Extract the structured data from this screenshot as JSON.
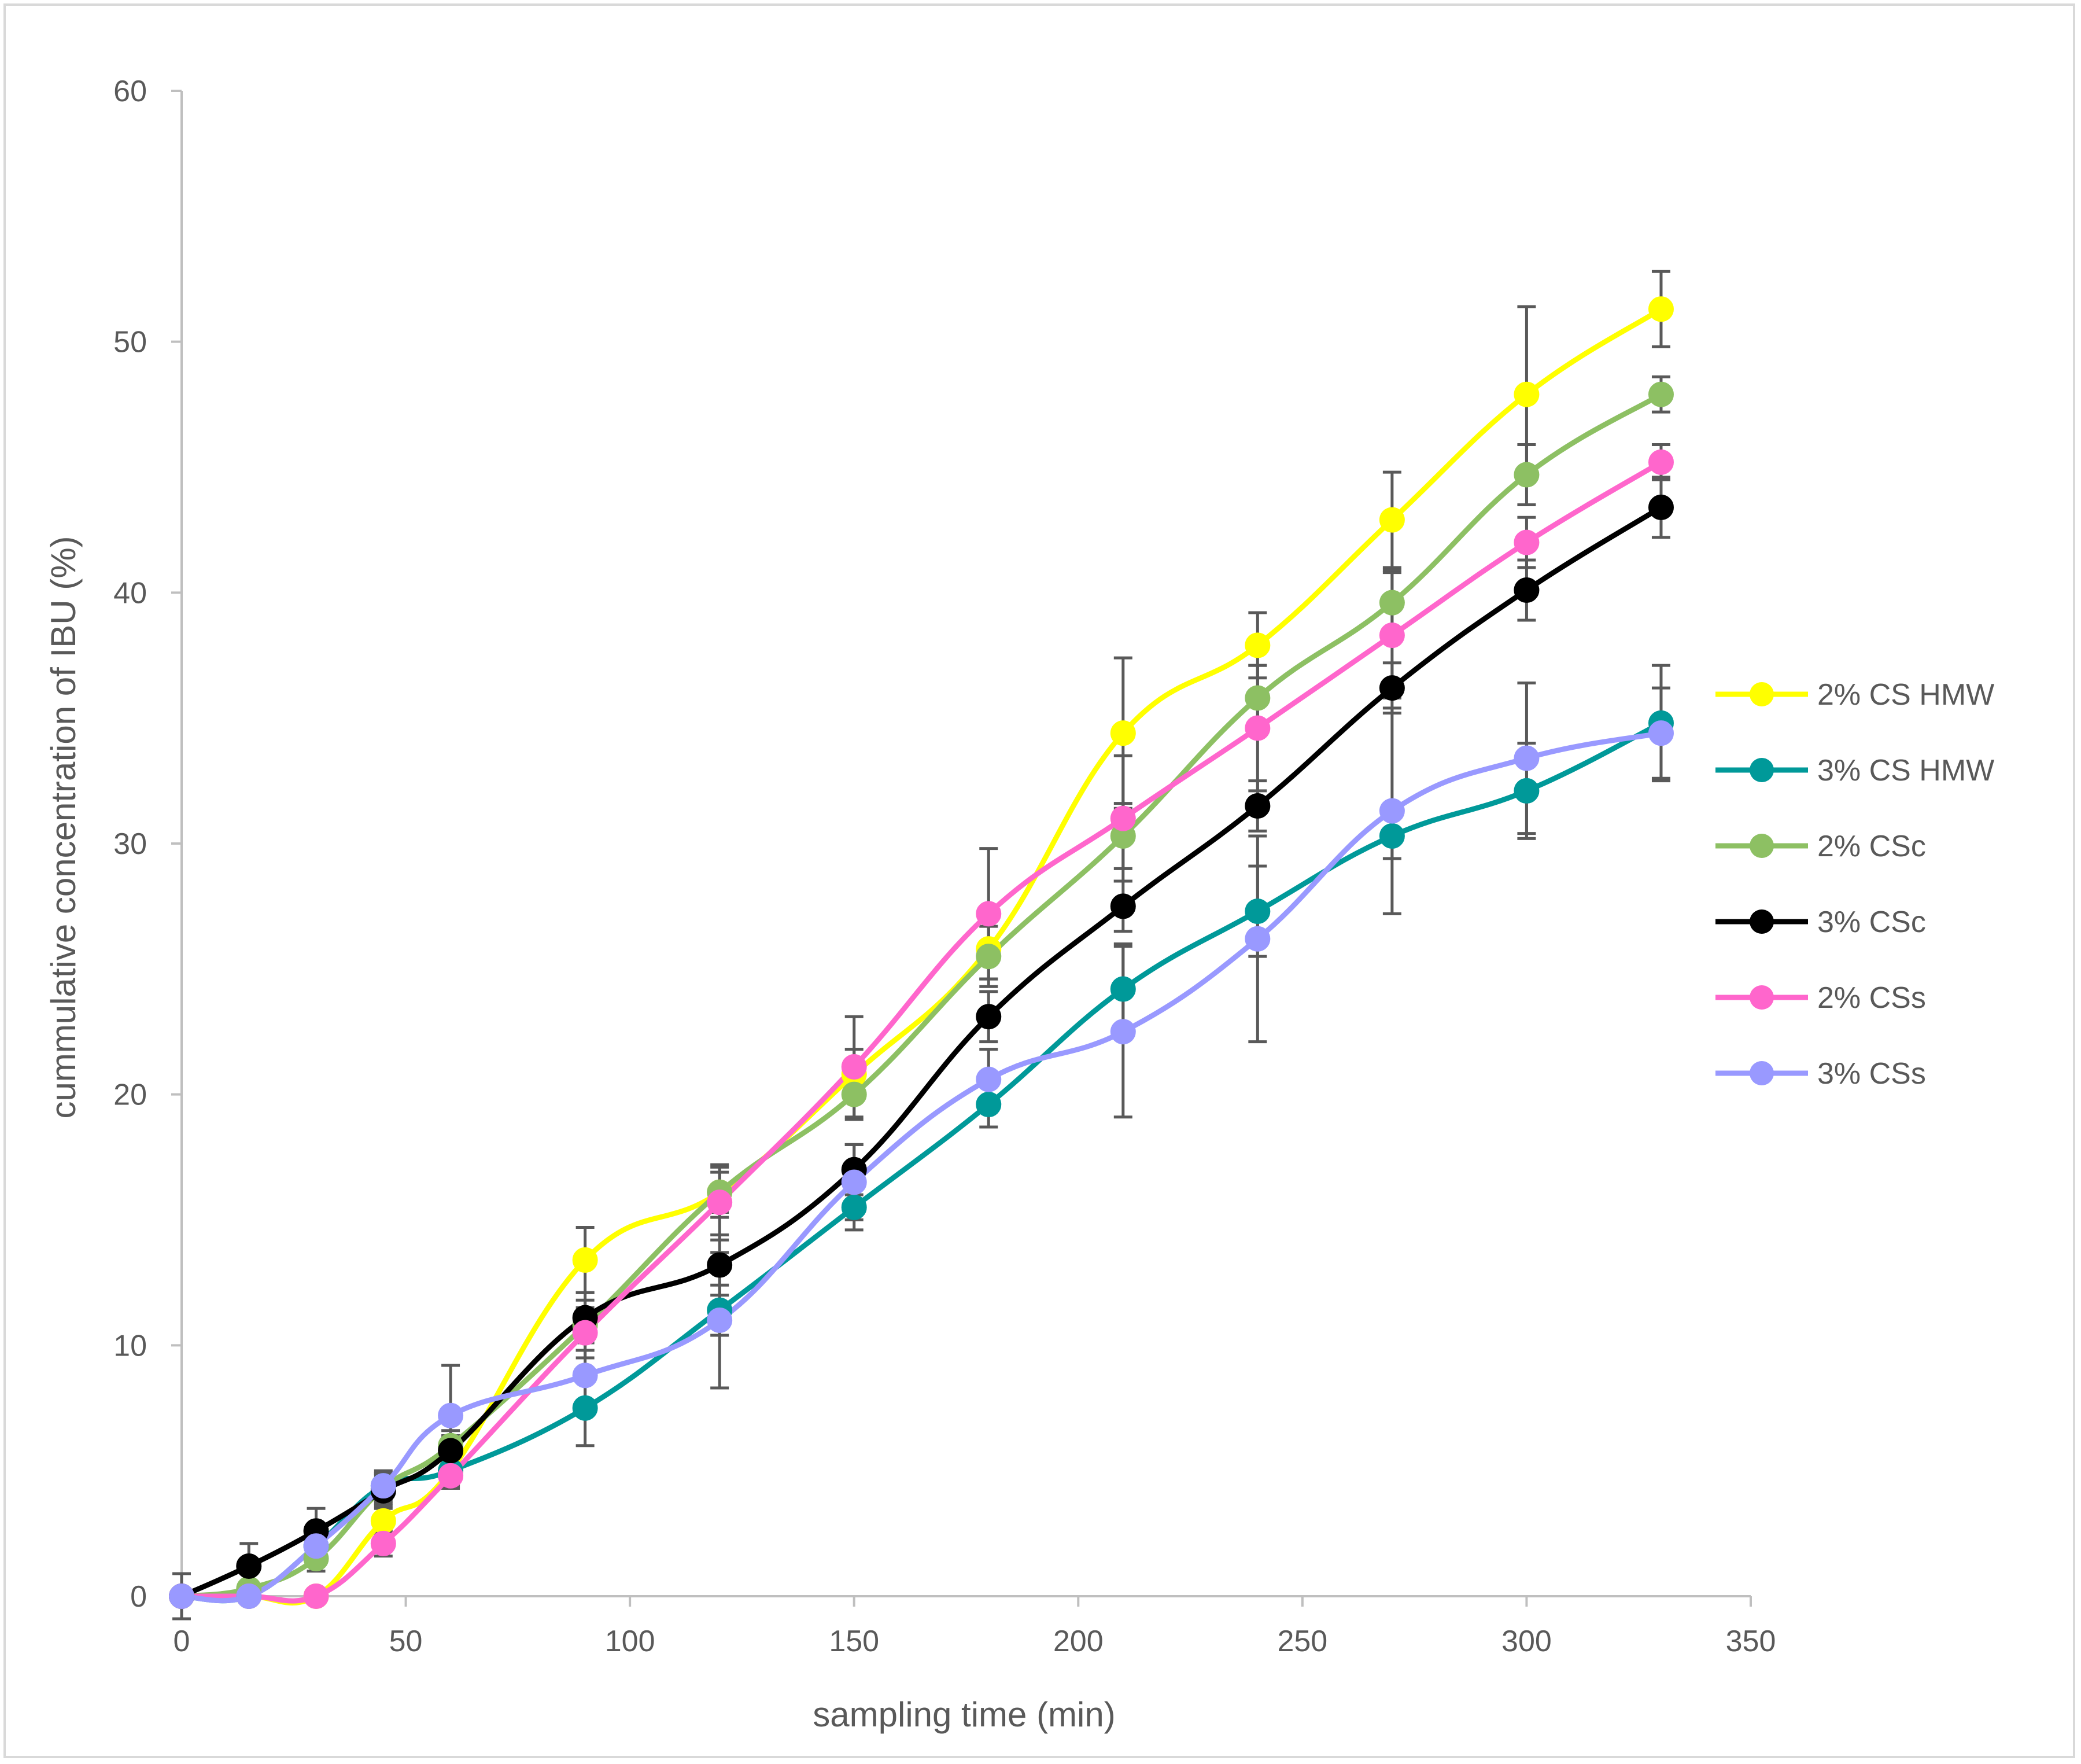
{
  "chart_data": {
    "type": "line",
    "title": "",
    "xlabel": "sampling time (min)",
    "ylabel": "cummulative concentration of  IBU (%)",
    "xlim": [
      0,
      350
    ],
    "ylim": [
      0,
      60
    ],
    "xticks": [
      0,
      50,
      100,
      150,
      200,
      250,
      300,
      350
    ],
    "yticks": [
      0,
      10,
      20,
      30,
      40,
      50,
      60
    ],
    "grid": false,
    "legend": "right",
    "x": [
      0,
      15,
      30,
      45,
      60,
      90,
      120,
      150,
      180,
      210,
      240,
      270,
      300,
      330
    ],
    "series": [
      {
        "name": "2% CS HMW",
        "color": "#ffff00",
        "values": [
          0,
          0,
          0,
          3.0,
          5.0,
          13.4,
          16.1,
          20.8,
          25.8,
          34.4,
          37.9,
          42.9,
          47.9,
          51.3
        ],
        "errors": [
          0,
          0,
          0,
          0.5,
          0.5,
          1.3,
          0.8,
          1.0,
          1.2,
          3.0,
          1.3,
          1.9,
          3.5,
          1.5
        ]
      },
      {
        "name": "3% CS HMW",
        "color": "#009999",
        "values": [
          0,
          0,
          2.0,
          4.4,
          5.0,
          7.5,
          11.4,
          15.5,
          19.6,
          24.2,
          27.3,
          30.3,
          32.1,
          34.8
        ],
        "errors": [
          0,
          0,
          0.5,
          0.6,
          0.6,
          1.5,
          1.0,
          0.9,
          0.9,
          1.8,
          1.8,
          0.9,
          1.9,
          2.3
        ]
      },
      {
        "name": "2% CSc",
        "color": "#8dc063",
        "values": [
          0,
          0.3,
          1.5,
          4.3,
          6.0,
          10.8,
          16.1,
          20.0,
          25.5,
          30.3,
          35.8,
          39.6,
          44.7,
          47.9
        ],
        "errors": [
          0,
          0,
          0.5,
          0.6,
          0.6,
          1.0,
          1.0,
          1.0,
          1.2,
          1.3,
          1.3,
          1.3,
          1.2,
          0.7
        ]
      },
      {
        "name": "3% CSc",
        "color": "#000000",
        "values": [
          0,
          1.2,
          2.6,
          4.2,
          5.8,
          11.1,
          13.2,
          17.0,
          23.1,
          27.5,
          31.5,
          36.2,
          40.1,
          43.4
        ],
        "errors": [
          0.9,
          0.9,
          0.9,
          0.6,
          0.6,
          1.0,
          1.2,
          1.0,
          1.0,
          1.0,
          1.0,
          1.0,
          1.2,
          1.2
        ]
      },
      {
        "name": "2% CSs",
        "color": "#ff66cc",
        "values": [
          0,
          0,
          0,
          2.1,
          4.8,
          10.5,
          15.7,
          21.1,
          27.2,
          31.0,
          34.6,
          38.3,
          42.0,
          45.2
        ],
        "errors": [
          0,
          0,
          0,
          0.5,
          0.5,
          1.0,
          1.5,
          2.0,
          2.6,
          2.5,
          2.5,
          2.5,
          1.0,
          0.7
        ]
      },
      {
        "name": "3% CSs",
        "color": "#9999ff",
        "values": [
          0,
          0,
          2.0,
          4.4,
          7.2,
          8.8,
          11.0,
          16.5,
          20.6,
          22.5,
          26.2,
          31.3,
          33.4,
          34.4
        ],
        "errors": [
          0,
          0,
          0,
          0.5,
          2.0,
          1.0,
          2.7,
          1.5,
          1.2,
          3.4,
          4.1,
          4.1,
          3.0,
          1.8
        ]
      }
    ]
  }
}
